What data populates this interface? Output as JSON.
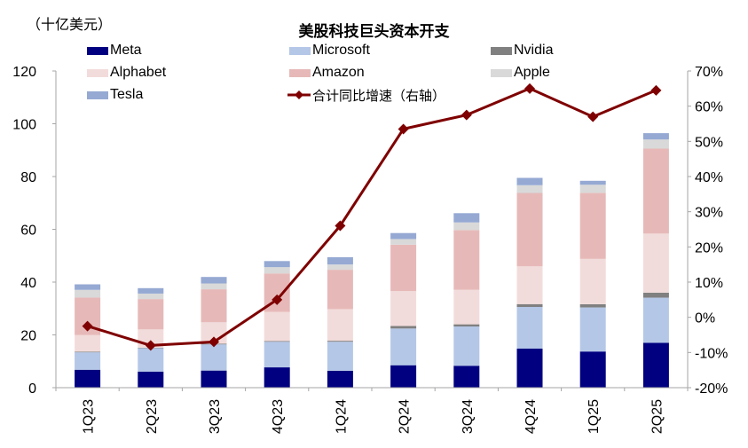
{
  "chart_data": {
    "type": "bar",
    "subtype": "stacked-bar-with-line",
    "title": "美股科技巨头资本开支",
    "ylabel": "（十亿美元）",
    "y2label": "合计同比增速（右轴）",
    "ylim": [
      0,
      120
    ],
    "yticks": [
      0,
      20,
      40,
      60,
      80,
      100,
      120
    ],
    "y2lim": [
      -20,
      70
    ],
    "y2ticks": [
      "-20%",
      "-10%",
      "0%",
      "10%",
      "20%",
      "30%",
      "40%",
      "50%",
      "60%",
      "70%"
    ],
    "y2tick_values": [
      -20,
      -10,
      0,
      10,
      20,
      30,
      40,
      50,
      60,
      70
    ],
    "grid": false,
    "legend_position": "top",
    "categories": [
      "1Q23",
      "2Q23",
      "3Q23",
      "4Q23",
      "1Q24",
      "2Q24",
      "3Q24",
      "4Q24",
      "1Q25",
      "2Q25"
    ],
    "series": [
      {
        "name": "Meta",
        "color": "#000080",
        "values": [
          6.8,
          6.1,
          6.5,
          7.7,
          6.4,
          8.5,
          8.3,
          14.8,
          13.7,
          17.0
        ]
      },
      {
        "name": "Microsoft",
        "color": "#B4C7E7",
        "values": [
          6.6,
          8.9,
          9.9,
          9.7,
          11.0,
          13.9,
          14.9,
          15.8,
          16.7,
          17.1
        ]
      },
      {
        "name": "Nvidia",
        "color": "#808080",
        "values": [
          0.25,
          0.17,
          0.28,
          0.28,
          0.37,
          0.98,
          0.81,
          1.08,
          1.23,
          1.9
        ]
      },
      {
        "name": "Alphabet",
        "color": "#F2DCDB",
        "values": [
          6.3,
          6.9,
          8.1,
          11.0,
          12.0,
          13.2,
          13.1,
          14.3,
          17.2,
          22.4
        ]
      },
      {
        "name": "Amazon",
        "color": "#E6B9B8",
        "values": [
          14.2,
          11.5,
          12.5,
          14.6,
          14.9,
          17.6,
          22.6,
          27.8,
          25.0,
          32.2
        ]
      },
      {
        "name": "Apple",
        "color": "#D9D9D9",
        "values": [
          2.9,
          2.1,
          2.2,
          2.4,
          2.0,
          2.15,
          2.9,
          2.94,
          3.07,
          3.46
        ]
      },
      {
        "name": "Tesla",
        "color": "#95A9D3",
        "values": [
          2.1,
          2.06,
          2.46,
          2.3,
          2.77,
          2.27,
          3.5,
          2.78,
          1.49,
          2.39
        ]
      }
    ],
    "line_series": {
      "name": "合计同比增速（右轴）",
      "color": "#7F0000",
      "axis": "right",
      "unit": "%",
      "values": [
        -2.5,
        -8,
        -7,
        5,
        26,
        53.5,
        57.5,
        65,
        57,
        64.5
      ]
    }
  },
  "legend": {
    "items": [
      {
        "label": "Meta",
        "type": "bar"
      },
      {
        "label": "Microsoft",
        "type": "bar"
      },
      {
        "label": "Nvidia",
        "type": "bar"
      },
      {
        "label": "Alphabet",
        "type": "bar"
      },
      {
        "label": "Amazon",
        "type": "bar"
      },
      {
        "label": "Apple",
        "type": "bar"
      },
      {
        "label": "Tesla",
        "type": "bar"
      },
      {
        "label": "合计同比增速（右轴）",
        "type": "line"
      }
    ]
  }
}
